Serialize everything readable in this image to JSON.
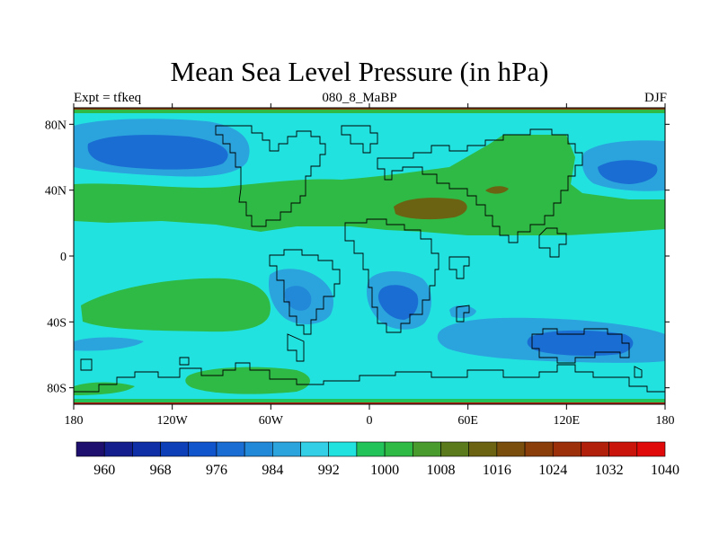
{
  "title": "Mean Sea Level Pressure (in hPa)",
  "subtitle_left": "Expt = tfkeq",
  "subtitle_center": "080_8_MaBP",
  "subtitle_right": "DJF",
  "chart_data": {
    "type": "heatmap",
    "variable": "Mean Sea Level Pressure",
    "units": "hPa",
    "x_ticks": [
      "180",
      "120W",
      "60W",
      "0",
      "60E",
      "120E",
      "180"
    ],
    "y_ticks": [
      "80N",
      "40N",
      "0",
      "40S",
      "80S"
    ],
    "xlim": [
      -180,
      180
    ],
    "ylim": [
      -90,
      90
    ],
    "colorbar": {
      "levels": [
        960,
        964,
        968,
        972,
        976,
        980,
        984,
        988,
        992,
        996,
        1000,
        1004,
        1008,
        1012,
        1016,
        1020,
        1024,
        1028,
        1032,
        1036,
        1040
      ],
      "labels": [
        "960",
        "968",
        "976",
        "984",
        "992",
        "1000",
        "1008",
        "1016",
        "1024",
        "1032",
        "1040"
      ],
      "colors": [
        "#1e0f6e",
        "#141e8c",
        "#0f2fa6",
        "#0d3fb8",
        "#1155cc",
        "#1a6dd2",
        "#2288d8",
        "#2ba3dd",
        "#33cfe6",
        "#22e2e0",
        "#22c45a",
        "#2fba45",
        "#4a9b2e",
        "#5a7a1c",
        "#6b6212",
        "#7a4e0c",
        "#8a3e0a",
        "#9c300a",
        "#b0200a",
        "#c8140a",
        "#e00a0a"
      ]
    },
    "background_value_range": [
      992,
      1004
    ],
    "regions": [
      {
        "name": "north-pacific-low",
        "center": [
          -143,
          62
        ],
        "range_hpa": [
          976,
          988
        ]
      },
      {
        "name": "north-pacific-low-edge",
        "center": [
          -143,
          62
        ],
        "range_hpa": [
          988,
          996
        ]
      },
      {
        "name": "northwest-pacific-low",
        "center": [
          150,
          52
        ],
        "range_hpa": [
          980,
          992
        ]
      },
      {
        "name": "subtropical-high-north",
        "center": [
          0,
          33
        ],
        "range_hpa": [
          1004,
          1012
        ]
      },
      {
        "name": "asian-high",
        "center": [
          38,
          30
        ],
        "range_hpa": [
          1012,
          1020
        ]
      },
      {
        "name": "south-pacific-high",
        "center": [
          -125,
          -28
        ],
        "range_hpa": [
          1004,
          1012
        ]
      },
      {
        "name": "south-america-low",
        "center": [
          -45,
          -25
        ],
        "range_hpa": [
          984,
          996
        ]
      },
      {
        "name": "south-africa-low",
        "center": [
          21,
          -28
        ],
        "range_hpa": [
          984,
          996
        ]
      },
      {
        "name": "southern-ocean-low",
        "center": [
          128,
          -55
        ],
        "range_hpa": [
          984,
          996
        ]
      },
      {
        "name": "antarctic-high",
        "center": [
          -100,
          -75
        ],
        "range_hpa": [
          1004,
          1012
        ]
      }
    ],
    "continent_outlines": "coarse-grid paleogeography (080_8_MaBP)"
  }
}
